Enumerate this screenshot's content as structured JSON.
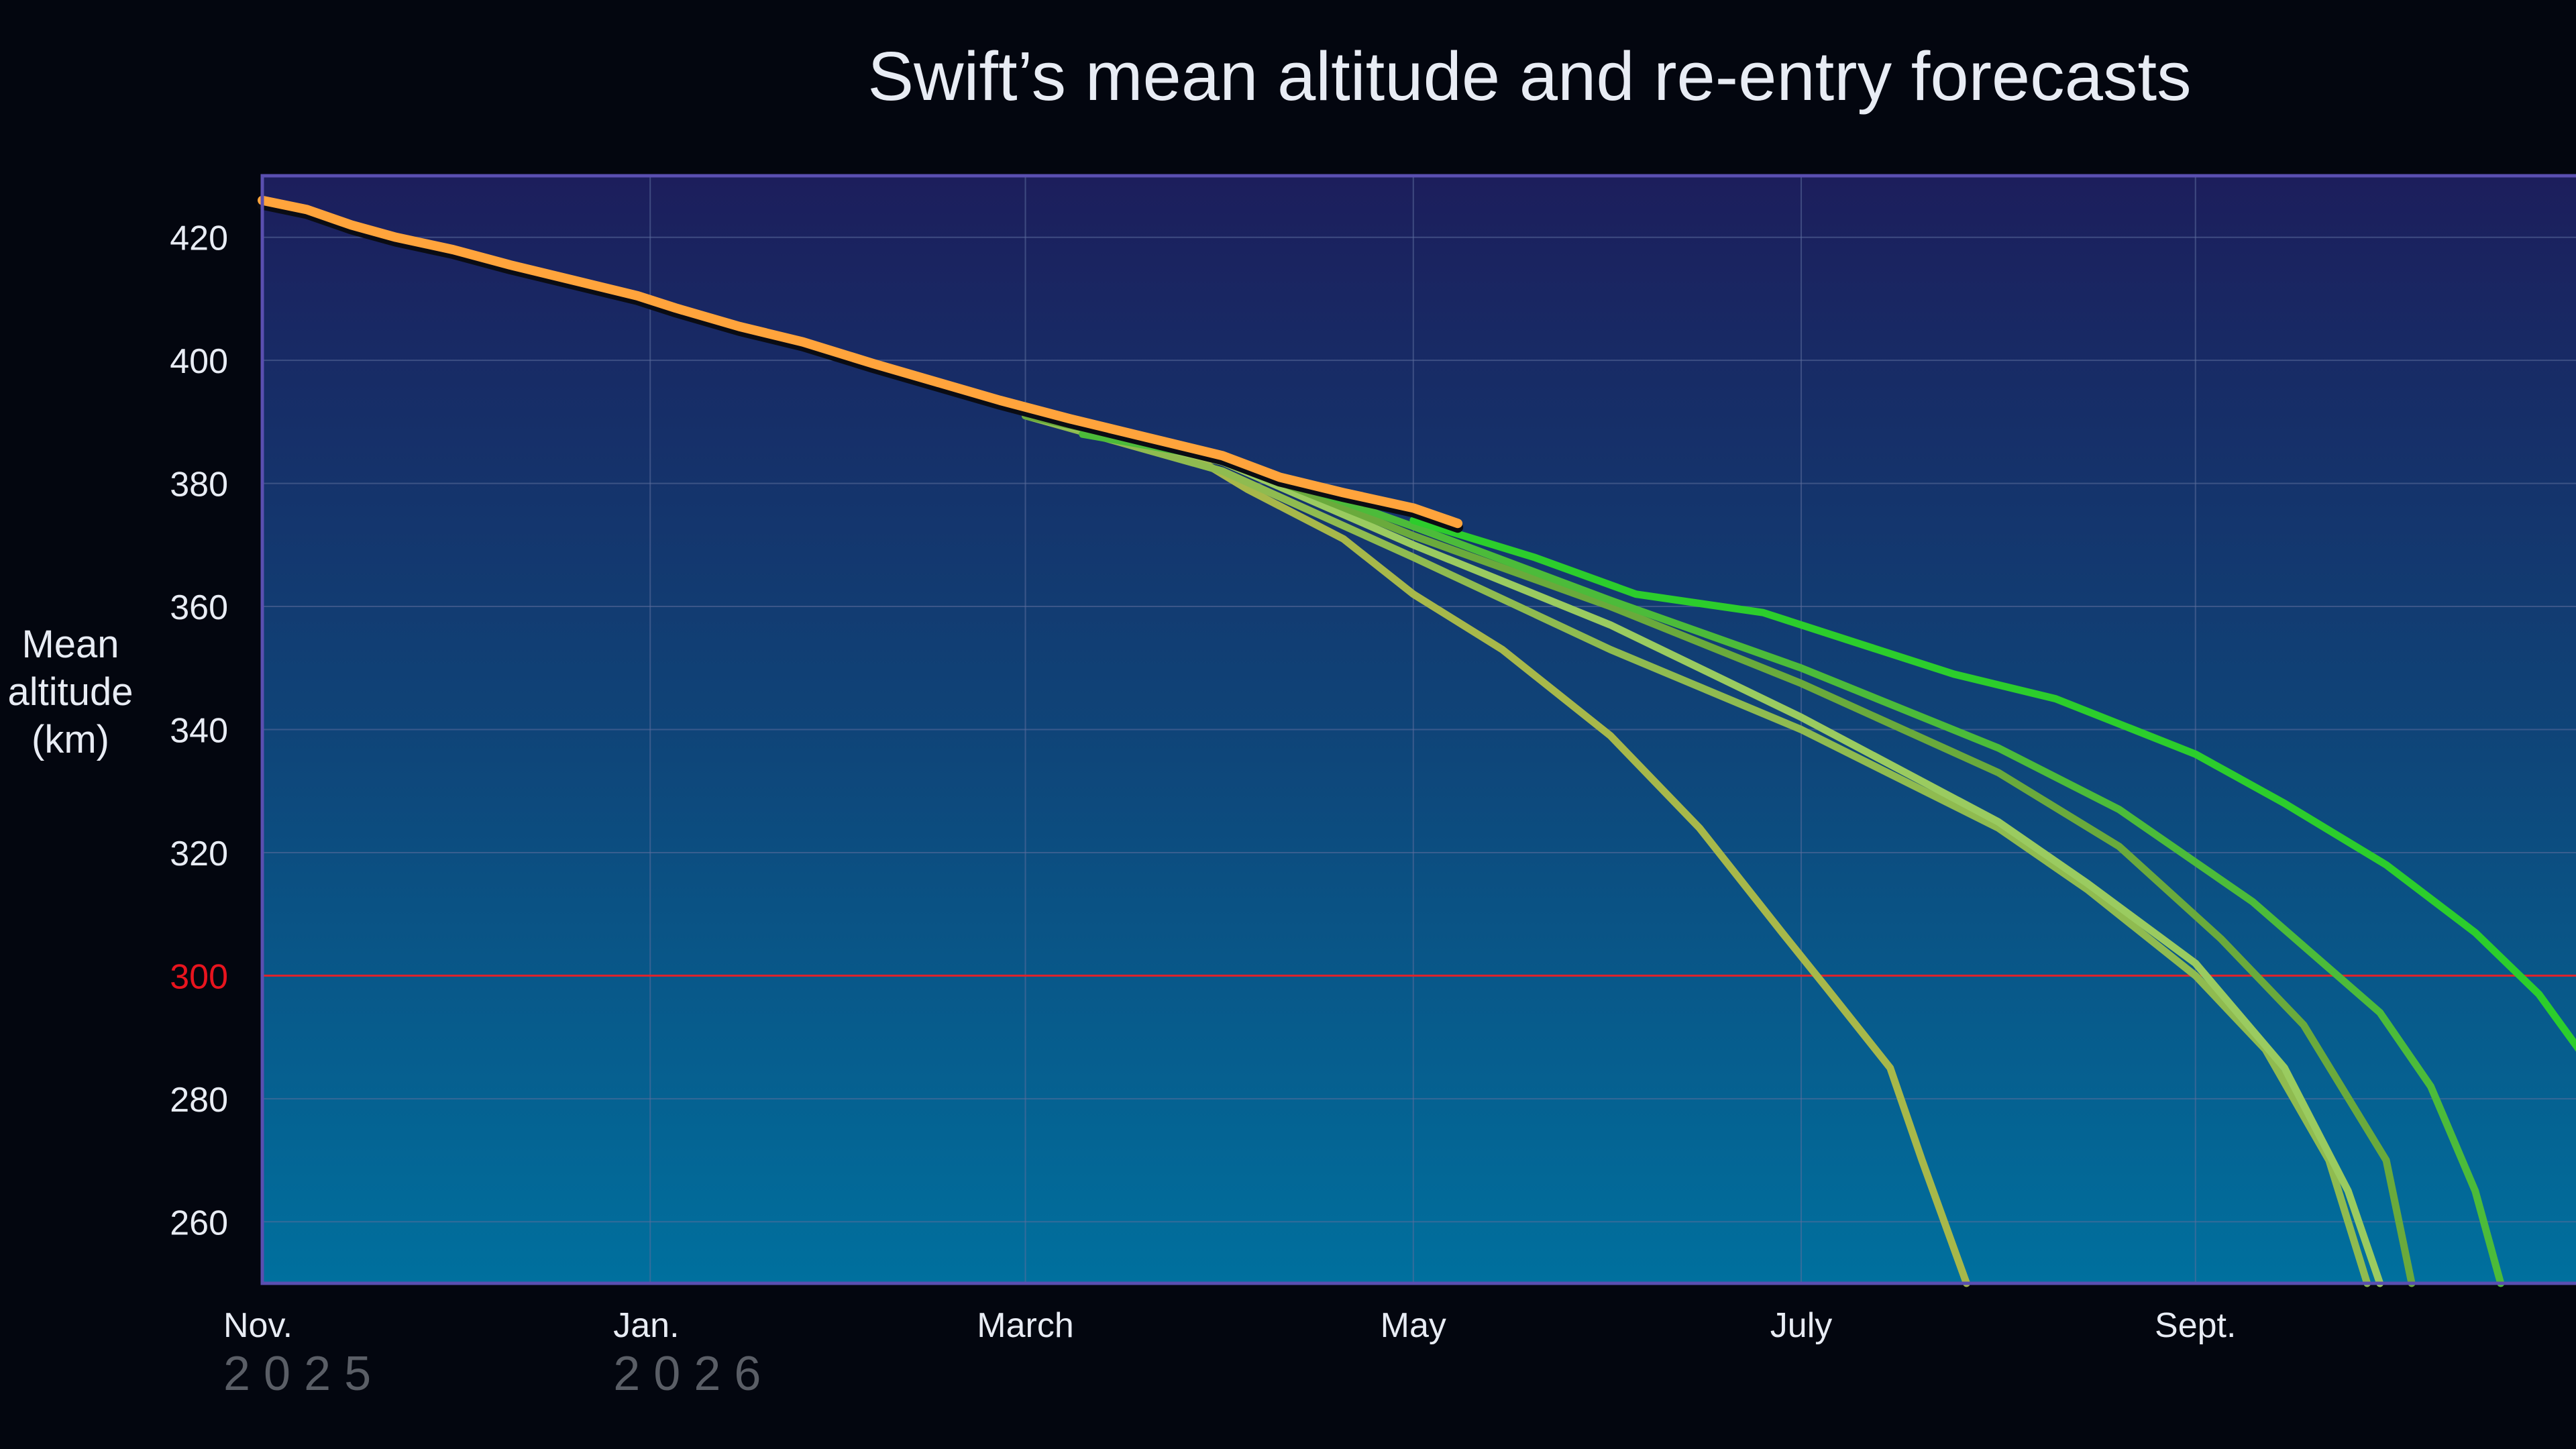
{
  "chart_data": {
    "type": "line",
    "title": "Swift’s mean altitude and re-entry forecasts",
    "ylabel": [
      "Mean",
      "altitude",
      "(km)"
    ],
    "xlabel": "",
    "ylim": [
      250,
      430
    ],
    "xlim": [
      "2025-11-01",
      "2026-11-01"
    ],
    "y_ticks": [
      260,
      280,
      300,
      320,
      340,
      360,
      380,
      400,
      420
    ],
    "x_ticks": [
      {
        "date": "2025-11-01",
        "label": "Nov.",
        "year": "2 0 2 5"
      },
      {
        "date": "2026-01-01",
        "label": "Jan.",
        "year": "2 0 2 6"
      },
      {
        "date": "2026-03-01",
        "label": "March"
      },
      {
        "date": "2026-05-01",
        "label": "May"
      },
      {
        "date": "2026-07-01",
        "label": "July"
      },
      {
        "date": "2026-09-01",
        "label": "Sept."
      }
    ],
    "reference_line": {
      "y": 300,
      "color": "#e0232a"
    },
    "grid": true,
    "observed": {
      "color": "#ffa43c",
      "points": [
        [
          "2025-11-01",
          426
        ],
        [
          "2025-11-08",
          424.5
        ],
        [
          "2025-11-15",
          422
        ],
        [
          "2025-11-22",
          420
        ],
        [
          "2025-12-01",
          418
        ],
        [
          "2025-12-10",
          415.5
        ],
        [
          "2025-12-20",
          413
        ],
        [
          "2025-12-30",
          410.5
        ],
        [
          "2026-01-05",
          408.5
        ],
        [
          "2026-01-15",
          405.5
        ],
        [
          "2026-01-25",
          403
        ],
        [
          "2026-02-05",
          399.5
        ],
        [
          "2026-02-15",
          396.5
        ],
        [
          "2026-02-25",
          393.5
        ],
        [
          "2026-03-08",
          390.5
        ],
        [
          "2026-03-20",
          387.5
        ],
        [
          "2026-04-01",
          384.5
        ],
        [
          "2026-04-10",
          381
        ],
        [
          "2026-04-20",
          378.5
        ],
        [
          "2026-05-01",
          376
        ],
        [
          "2026-05-08",
          373.5
        ]
      ]
    },
    "series": [
      {
        "color": "#a7b84a",
        "points": [
          [
            "2026-02-20",
            395
          ],
          [
            "2026-03-10",
            389.5
          ],
          [
            "2026-03-28",
            384
          ],
          [
            "2026-04-05",
            379
          ],
          [
            "2026-04-20",
            371
          ],
          [
            "2026-05-01",
            362
          ],
          [
            "2026-05-15",
            353
          ],
          [
            "2026-06-01",
            339
          ],
          [
            "2026-06-15",
            324
          ],
          [
            "2026-06-28",
            307
          ],
          [
            "2026-07-05",
            298
          ],
          [
            "2026-07-15",
            285
          ],
          [
            "2026-07-20",
            270
          ],
          [
            "2026-07-27",
            250
          ]
        ]
      },
      {
        "color": "#8fbb50",
        "points": [
          [
            "2026-03-01",
            391
          ],
          [
            "2026-04-01",
            382
          ],
          [
            "2026-05-01",
            368
          ],
          [
            "2026-06-01",
            353
          ],
          [
            "2026-07-01",
            340
          ],
          [
            "2026-08-01",
            324
          ],
          [
            "2026-08-15",
            314
          ],
          [
            "2026-09-01",
            300
          ],
          [
            "2026-09-12",
            288
          ],
          [
            "2026-09-22",
            270
          ],
          [
            "2026-09-28",
            250
          ]
        ]
      },
      {
        "color": "#9acb60",
        "points": [
          [
            "2026-03-01",
            391
          ],
          [
            "2026-04-01",
            383.5
          ],
          [
            "2026-05-01",
            370
          ],
          [
            "2026-06-01",
            357
          ],
          [
            "2026-07-01",
            342
          ],
          [
            "2026-08-01",
            325
          ],
          [
            "2026-08-15",
            315
          ],
          [
            "2026-09-01",
            302
          ],
          [
            "2026-09-15",
            285
          ],
          [
            "2026-09-25",
            265
          ],
          [
            "2026-09-30",
            250
          ]
        ]
      },
      {
        "color": "#6aaa3c",
        "points": [
          [
            "2026-03-01",
            391
          ],
          [
            "2026-04-01",
            384
          ],
          [
            "2026-05-01",
            371.5
          ],
          [
            "2026-06-01",
            360
          ],
          [
            "2026-07-01",
            347.5
          ],
          [
            "2026-08-01",
            333
          ],
          [
            "2026-08-20",
            321
          ],
          [
            "2026-09-05",
            306
          ],
          [
            "2026-09-18",
            292
          ],
          [
            "2026-10-01",
            270
          ],
          [
            "2026-10-05",
            250
          ]
        ]
      },
      {
        "color": "#4cbb3a",
        "points": [
          [
            "2026-03-10",
            388
          ],
          [
            "2026-04-01",
            384
          ],
          [
            "2026-05-01",
            373
          ],
          [
            "2026-06-01",
            361
          ],
          [
            "2026-07-01",
            350
          ],
          [
            "2026-08-01",
            337
          ],
          [
            "2026-08-20",
            327
          ],
          [
            "2026-09-10",
            312
          ],
          [
            "2026-09-30",
            294
          ],
          [
            "2026-10-08",
            282
          ],
          [
            "2026-10-15",
            265
          ],
          [
            "2026-10-19",
            250
          ]
        ]
      },
      {
        "color": "#2ccd2c",
        "points": [
          [
            "2026-05-01",
            374
          ],
          [
            "2026-05-20",
            368
          ],
          [
            "2026-06-05",
            362
          ],
          [
            "2026-06-25",
            359
          ],
          [
            "2026-07-10",
            354
          ],
          [
            "2026-07-25",
            349
          ],
          [
            "2026-08-10",
            345
          ],
          [
            "2026-09-01",
            336
          ],
          [
            "2026-09-15",
            328
          ],
          [
            "2026-10-01",
            318
          ],
          [
            "2026-10-15",
            307
          ],
          [
            "2026-10-25",
            297
          ],
          [
            "2026-11-01",
            287
          ]
        ]
      }
    ]
  }
}
